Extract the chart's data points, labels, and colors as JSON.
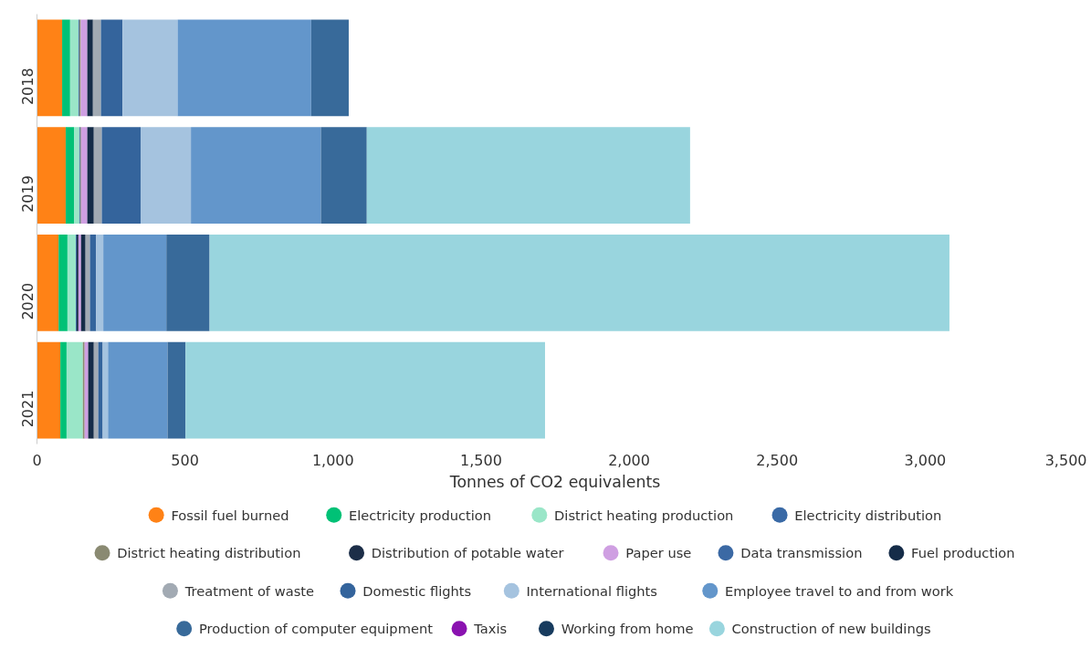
{
  "chart_data": {
    "type": "bar",
    "orientation": "horizontal",
    "stacked": true,
    "xlabel": "Tonnes of CO2 equivalents",
    "categories": [
      "2018",
      "2019",
      "2020",
      "2021"
    ],
    "xlim": [
      0,
      3500
    ],
    "xticks": [
      0,
      500,
      {
        "value": 1000,
        "label": "1,000"
      },
      {
        "value": 1500,
        "label": "1,500"
      },
      {
        "value": 2000,
        "label": "2,000"
      },
      {
        "value": 2500,
        "label": "2,500"
      },
      {
        "value": 3000,
        "label": "3,000"
      },
      {
        "value": 3500,
        "label": "3,500"
      }
    ],
    "grid": false,
    "legend": "bottom",
    "marker": "circle",
    "series": [
      {
        "name": "Fossil fuel burned",
        "color": "#ff8216",
        "values": [
          85,
          97,
          73,
          79
        ]
      },
      {
        "name": "Electricity production",
        "color": "#00c176",
        "values": [
          27,
          28,
          30,
          21
        ]
      },
      {
        "name": "District heating production",
        "color": "#9ae6c8",
        "values": [
          28,
          18,
          28,
          55
        ]
      },
      {
        "name": "Electricity distribution",
        "color": "#3a6aa6",
        "values": [
          3,
          3,
          3,
          null
        ]
      },
      {
        "name": "District heating distribution",
        "color": "#8a8a72",
        "values": [
          5,
          3,
          null,
          6
        ]
      },
      {
        "name": "Distribution of potable water",
        "color": "#1c2e48",
        "values": [
          null,
          null,
          6,
          null
        ]
      },
      {
        "name": "Paper use",
        "color": "#cf9fe2",
        "values": [
          22,
          21,
          9,
          12
        ]
      },
      {
        "name": "Data transmission",
        "color": "#3b69a4",
        "values": [
          null,
          null,
          null,
          null
        ]
      },
      {
        "name": "Fuel production",
        "color": "#152c48",
        "values": [
          19,
          22,
          15,
          19
        ]
      },
      {
        "name": "Treatment of waste",
        "color": "#a2aab3",
        "values": [
          27,
          27,
          15,
          15
        ]
      },
      {
        "name": "Domestic flights",
        "color": "#34649c",
        "values": [
          73,
          131,
          21,
          15
        ]
      },
      {
        "name": "International flights",
        "color": "#a5c3df",
        "values": [
          186,
          170,
          24,
          18
        ]
      },
      {
        "name": "Employee travel to and from work",
        "color": "#6396cb",
        "values": [
          451,
          439,
          213,
          201
        ]
      },
      {
        "name": "Production of computer equipment",
        "color": "#386a9a",
        "values": [
          127,
          155,
          146,
          61
        ]
      },
      {
        "name": "Taxis",
        "color": "#8a12b0",
        "values": [
          null,
          null,
          null,
          null
        ]
      },
      {
        "name": "Working from home",
        "color": "#173b5e",
        "values": [
          null,
          null,
          null,
          null
        ]
      },
      {
        "name": "Construction of new buildings",
        "color": "#99d5de",
        "values": [
          null,
          1092,
          2499,
          1214
        ]
      }
    ]
  }
}
